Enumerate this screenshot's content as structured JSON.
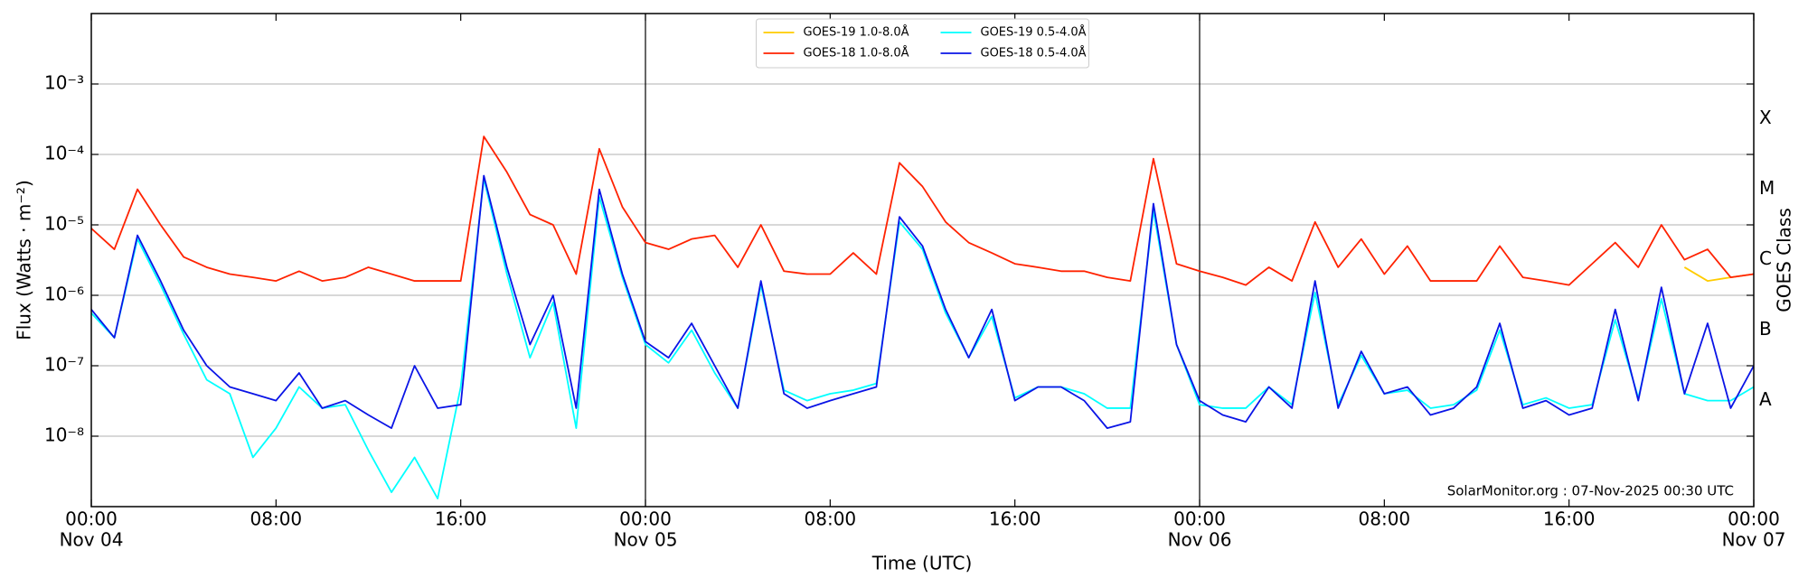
{
  "chart_data": {
    "type": "line",
    "yscale": "log",
    "xlabel": "Time (UTC)",
    "ylabel": "Flux (Watts · m⁻²)",
    "y2label": "GOES Class",
    "annotation": "SolarMonitor.org : 07-Nov-2025 00:30 UTC",
    "legend": "upper center",
    "grid": true,
    "xlim": [
      0,
      72
    ],
    "ylim": [
      1e-09,
      0.01
    ],
    "y2lim": [
      1e-09,
      0.01
    ],
    "xticks": [
      {
        "value": 0,
        "label": "00:00",
        "sublabel": "Nov 04"
      },
      {
        "value": 8,
        "label": "08:00"
      },
      {
        "value": 16,
        "label": "16:00"
      },
      {
        "value": 24,
        "label": "00:00",
        "sublabel": "Nov 05"
      },
      {
        "value": 32,
        "label": "08:00"
      },
      {
        "value": 40,
        "label": "16:00"
      },
      {
        "value": 48,
        "label": "00:00",
        "sublabel": "Nov 06"
      },
      {
        "value": 56,
        "label": "08:00"
      },
      {
        "value": 64,
        "label": "16:00"
      },
      {
        "value": 72,
        "label": "00:00",
        "sublabel": "Nov 07"
      }
    ],
    "yticks": [
      {
        "value": 1e-08,
        "label": "10⁻⁸"
      },
      {
        "value": 1e-07,
        "label": "10⁻⁷"
      },
      {
        "value": 1e-06,
        "label": "10⁻⁶"
      },
      {
        "value": 1e-05,
        "label": "10⁻⁵"
      },
      {
        "value": 0.0001,
        "label": "10⁻⁴"
      },
      {
        "value": 0.001,
        "label": "10⁻³"
      }
    ],
    "y2ticks": [
      {
        "value": 3.2e-08,
        "label": "A"
      },
      {
        "value": 3.2e-07,
        "label": "B"
      },
      {
        "value": 3.2e-06,
        "label": "C"
      },
      {
        "value": 3.2e-05,
        "label": "M"
      },
      {
        "value": 0.00032,
        "label": "X"
      }
    ],
    "x": [
      0,
      1,
      2,
      3,
      4,
      5,
      6,
      7,
      8,
      9,
      10,
      11,
      12,
      13,
      14,
      15,
      16,
      17,
      18,
      19,
      20,
      21,
      22,
      23,
      24,
      25,
      26,
      27,
      28,
      29,
      30,
      31,
      32,
      33,
      34,
      35,
      36,
      37,
      38,
      39,
      40,
      41,
      42,
      43,
      44,
      45,
      46,
      47,
      48,
      49,
      50,
      51,
      52,
      53,
      54,
      55,
      56,
      57,
      58,
      59,
      60,
      61,
      62,
      63,
      64,
      65,
      66,
      67,
      68,
      69,
      70,
      71,
      72
    ],
    "series": [
      {
        "name": "GOES-19 1.0-8.0Å",
        "color": "#ffcc00",
        "values": [
          null,
          null,
          null,
          null,
          null,
          null,
          null,
          null,
          null,
          null,
          null,
          null,
          null,
          null,
          null,
          null,
          null,
          null,
          null,
          null,
          null,
          null,
          null,
          null,
          null,
          null,
          null,
          null,
          null,
          null,
          null,
          null,
          null,
          null,
          null,
          null,
          null,
          null,
          null,
          null,
          null,
          null,
          null,
          null,
          null,
          null,
          null,
          null,
          null,
          null,
          null,
          null,
          null,
          null,
          null,
          null,
          null,
          null,
          null,
          null,
          null,
          null,
          null,
          null,
          null,
          null,
          null,
          null,
          null,
          2.5e-06,
          1.6e-06,
          1.8e-06,
          2e-06
        ]
      },
      {
        "name": "GOES-18 1.0-8.0Å",
        "color": "#ff2200",
        "values": [
          8.9e-06,
          4.5e-06,
          3.2e-05,
          1e-05,
          3.5e-06,
          2.5e-06,
          2e-06,
          1.8e-06,
          1.6e-06,
          2.2e-06,
          1.6e-06,
          1.8e-06,
          2.5e-06,
          2e-06,
          1.6e-06,
          1.6e-06,
          1.6e-06,
          0.00018,
          5.6e-05,
          1.4e-05,
          1e-05,
          2e-06,
          0.00012,
          1.8e-05,
          5.6e-06,
          4.5e-06,
          6.3e-06,
          7.1e-06,
          2.5e-06,
          1e-05,
          2.2e-06,
          2e-06,
          2e-06,
          4e-06,
          2e-06,
          7.6e-05,
          3.5e-05,
          1.1e-05,
          5.6e-06,
          4e-06,
          2.8e-06,
          2.5e-06,
          2.2e-06,
          2.2e-06,
          1.8e-06,
          1.6e-06,
          8.7e-05,
          2.8e-06,
          2.2e-06,
          1.8e-06,
          1.4e-06,
          2.5e-06,
          1.6e-06,
          1.1e-05,
          2.5e-06,
          6.3e-06,
          2e-06,
          5e-06,
          1.6e-06,
          1.6e-06,
          1.6e-06,
          5e-06,
          1.8e-06,
          1.6e-06,
          1.4e-06,
          2.8e-06,
          5.6e-06,
          2.5e-06,
          1e-05,
          3.2e-06,
          4.5e-06,
          1.8e-06,
          2e-06
        ]
      },
      {
        "name": "GOES-19 0.5-4.0Å",
        "color": "#00ffff",
        "values": [
          5.6e-07,
          2.5e-07,
          6.3e-06,
          1.4e-06,
          2.8e-07,
          6.3e-08,
          4e-08,
          5e-09,
          1.3e-08,
          5e-08,
          2.5e-08,
          2.8e-08,
          6.3e-09,
          1.6e-09,
          5e-09,
          1.3e-09,
          5e-08,
          4.5e-05,
          2e-06,
          1.3e-07,
          7.9e-07,
          1.3e-08,
          2.5e-05,
          1.8e-06,
          2e-07,
          1.1e-07,
          3.2e-07,
          7.9e-08,
          2.5e-08,
          1.4e-06,
          4.5e-08,
          3.2e-08,
          4e-08,
          4.5e-08,
          5.6e-08,
          1.1e-05,
          4.5e-06,
          5.6e-07,
          1.3e-07,
          5e-07,
          3.5e-08,
          5e-08,
          5e-08,
          4e-08,
          2.5e-08,
          2.5e-08,
          1.6e-05,
          2e-07,
          2.8e-08,
          2.5e-08,
          2.5e-08,
          5e-08,
          2.8e-08,
          1.1e-06,
          2.8e-08,
          1.4e-07,
          4e-08,
          4.5e-08,
          2.5e-08,
          2.8e-08,
          4.5e-08,
          3.2e-07,
          2.8e-08,
          3.5e-08,
          2.5e-08,
          2.8e-08,
          4.5e-07,
          3.5e-08,
          8.9e-07,
          4e-08,
          3.2e-08,
          3.2e-08,
          5e-08
        ]
      },
      {
        "name": "GOES-18 0.5-4.0Å",
        "color": "#0a14e6",
        "values": [
          6.3e-07,
          2.5e-07,
          7.1e-06,
          1.6e-06,
          3.2e-07,
          1e-07,
          5e-08,
          4e-08,
          3.2e-08,
          7.9e-08,
          2.5e-08,
          3.2e-08,
          2e-08,
          1.3e-08,
          1e-07,
          2.5e-08,
          2.8e-08,
          5e-05,
          2.5e-06,
          2e-07,
          1e-06,
          2.5e-08,
          3.2e-05,
          2e-06,
          2.2e-07,
          1.3e-07,
          4e-07,
          1e-07,
          2.5e-08,
          1.6e-06,
          4e-08,
          2.5e-08,
          3.2e-08,
          4e-08,
          5e-08,
          1.3e-05,
          5e-06,
          6.3e-07,
          1.3e-07,
          6.3e-07,
          3.2e-08,
          5e-08,
          5e-08,
          3.2e-08,
          1.3e-08,
          1.6e-08,
          2e-05,
          2e-07,
          3.2e-08,
          2e-08,
          1.6e-08,
          5e-08,
          2.5e-08,
          1.6e-06,
          2.5e-08,
          1.6e-07,
          4e-08,
          5e-08,
          2e-08,
          2.5e-08,
          5e-08,
          4e-07,
          2.5e-08,
          3.2e-08,
          2e-08,
          2.5e-08,
          6.3e-07,
          3.2e-08,
          1.3e-06,
          4e-08,
          4e-07,
          2.5e-08,
          1e-07
        ]
      }
    ]
  }
}
